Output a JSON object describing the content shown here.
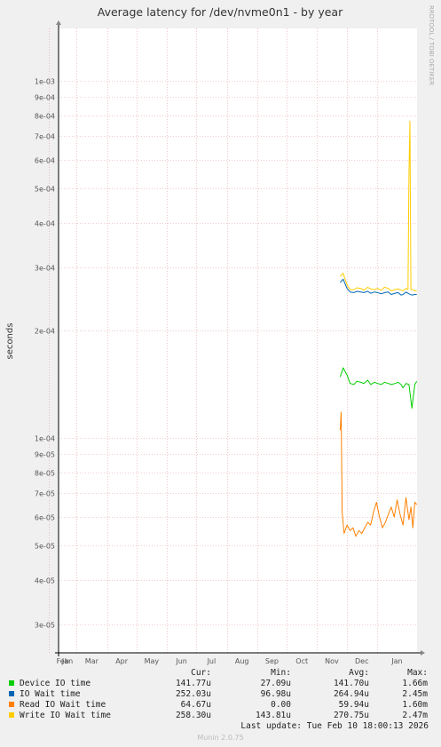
{
  "chart_data": {
    "type": "line",
    "title": "Average latency for /dev/nvme0n1 - by year",
    "ylabel": "seconds",
    "y_scale": "log",
    "ylim": [
      2.5e-05,
      0.0014
    ],
    "side_label": "RRDTOOL / TOBI OETIKER",
    "grid": true,
    "x_ticks": [
      "Jan",
      "Feb",
      "Mar",
      "Apr",
      "May",
      "Jun",
      "Jul",
      "Aug",
      "Sep",
      "Oct",
      "Nov",
      "Dec",
      "Jan"
    ],
    "y_ticks": [
      "1e-03",
      "9e-04",
      "8e-04",
      "7e-04",
      "6e-04",
      "5e-04",
      "4e-04",
      "3e-04",
      "2e-04",
      "1e-04",
      "9e-05",
      "8e-05",
      "7e-05",
      "6e-05",
      "5e-05",
      "4e-05",
      "3e-05"
    ],
    "y_tick_values": [
      0.001,
      0.0009,
      0.0008,
      0.0007,
      0.0006,
      0.0005,
      0.0004,
      0.0003,
      0.0002,
      0.0001,
      9e-05,
      8e-05,
      7e-05,
      6e-05,
      5e-05,
      4e-05,
      3e-05
    ],
    "series": [
      {
        "name": "Device IO time",
        "color": "#00cc00",
        "x": [
          "2025-11-24",
          "2025-11-27",
          "2025-12-01",
          "2025-12-04",
          "2025-12-08",
          "2025-12-11",
          "2025-12-15",
          "2025-12-18",
          "2025-12-22",
          "2025-12-25",
          "2025-12-29",
          "2026-01-01",
          "2026-01-05",
          "2026-01-08",
          "2026-01-12",
          "2026-01-15",
          "2026-01-19",
          "2026-01-22",
          "2026-01-25",
          "2026-01-27",
          "2026-01-30",
          "2026-02-02",
          "2026-02-05",
          "2026-02-08",
          "2026-02-10"
        ],
        "values": [
          0.000148,
          0.000157,
          0.00015,
          0.000142,
          0.000141,
          0.000144,
          0.000143,
          0.000142,
          0.000145,
          0.000141,
          0.000143,
          0.000142,
          0.000141,
          0.000143,
          0.000142,
          0.000141,
          0.000142,
          0.000143,
          0.000141,
          0.000138,
          0.000142,
          0.000141,
          0.000121,
          0.000141,
          0.000144
        ]
      },
      {
        "name": "IO Wait time",
        "color": "#0066b3",
        "x": [
          "2025-11-24",
          "2025-11-27",
          "2025-12-01",
          "2025-12-04",
          "2025-12-08",
          "2025-12-11",
          "2025-12-15",
          "2025-12-18",
          "2025-12-22",
          "2025-12-25",
          "2025-12-29",
          "2026-01-01",
          "2026-01-05",
          "2026-01-08",
          "2026-01-12",
          "2026-01-15",
          "2026-01-19",
          "2026-01-22",
          "2026-01-25",
          "2026-01-27",
          "2026-01-30",
          "2026-02-02",
          "2026-02-05",
          "2026-02-08",
          "2026-02-10"
        ],
        "values": [
          0.000272,
          0.000278,
          0.000262,
          0.000256,
          0.000255,
          0.000257,
          0.000256,
          0.000255,
          0.000257,
          0.000254,
          0.000256,
          0.000255,
          0.000253,
          0.000255,
          0.000256,
          0.000252,
          0.000254,
          0.000255,
          0.000251,
          0.000252,
          0.000256,
          0.000253,
          0.000251,
          0.000252,
          0.000252
        ]
      },
      {
        "name": "Read IO Wait time",
        "color": "#ff8000",
        "x": [
          "2025-11-24",
          "2025-11-25",
          "2025-11-26",
          "2025-11-28",
          "2025-12-01",
          "2025-12-04",
          "2025-12-07",
          "2025-12-10",
          "2025-12-13",
          "2025-12-16",
          "2025-12-19",
          "2025-12-22",
          "2025-12-25",
          "2025-12-28",
          "2025-12-31",
          "2026-01-03",
          "2026-01-06",
          "2026-01-09",
          "2026-01-12",
          "2026-01-15",
          "2026-01-18",
          "2026-01-21",
          "2026-01-24",
          "2026-01-27",
          "2026-01-30",
          "2026-02-02",
          "2026-02-04",
          "2026-02-06",
          "2026-02-08",
          "2026-02-10"
        ],
        "values": [
          0.000105,
          0.000118,
          6.2e-05,
          5.4e-05,
          5.7e-05,
          5.5e-05,
          5.6e-05,
          5.3e-05,
          5.5e-05,
          5.4e-05,
          5.6e-05,
          5.8e-05,
          5.7e-05,
          6.2e-05,
          6.6e-05,
          6e-05,
          5.6e-05,
          5.8e-05,
          6.1e-05,
          6.4e-05,
          6e-05,
          6.7e-05,
          6.1e-05,
          5.7e-05,
          6.8e-05,
          5.9e-05,
          6.4e-05,
          5.6e-05,
          6.6e-05,
          6.5e-05
        ]
      },
      {
        "name": "Write IO Wait time",
        "color": "#ffcc00",
        "x": [
          "2025-11-24",
          "2025-11-27",
          "2025-12-01",
          "2025-12-04",
          "2025-12-08",
          "2025-12-11",
          "2025-12-15",
          "2025-12-18",
          "2025-12-22",
          "2025-12-25",
          "2025-12-29",
          "2026-01-01",
          "2026-01-05",
          "2026-01-08",
          "2026-01-12",
          "2026-01-15",
          "2026-01-19",
          "2026-01-22",
          "2026-01-25",
          "2026-01-27",
          "2026-01-30",
          "2026-02-01",
          "2026-02-02",
          "2026-02-03",
          "2026-02-04",
          "2026-02-06",
          "2026-02-08",
          "2026-02-10"
        ],
        "values": [
          0.000283,
          0.000289,
          0.000268,
          0.00026,
          0.00026,
          0.000263,
          0.000262,
          0.000259,
          0.000264,
          0.000261,
          0.00026,
          0.000262,
          0.000259,
          0.000264,
          0.000262,
          0.000258,
          0.00026,
          0.000261,
          0.000259,
          0.000258,
          0.000262,
          0.00026,
          0.00055,
          0.00077,
          0.00026,
          0.00026,
          0.000258,
          0.000258
        ]
      }
    ]
  },
  "legend": {
    "headers": {
      "cur": "Cur:",
      "min": "Min:",
      "avg": "Avg:",
      "max": "Max:"
    },
    "rows": [
      {
        "name": "Device IO time",
        "color": "#00cc00",
        "cur": "141.77u",
        "min": "27.09u",
        "avg": "141.70u",
        "max": "1.66m"
      },
      {
        "name": "IO Wait time",
        "color": "#0066b3",
        "cur": "252.03u",
        "min": "96.98u",
        "avg": "264.94u",
        "max": "2.45m"
      },
      {
        "name": "Read IO Wait time",
        "color": "#ff8000",
        "cur": "64.67u",
        "min": "0.00",
        "avg": "59.94u",
        "max": "1.60m"
      },
      {
        "name": "Write IO Wait time",
        "color": "#ffcc00",
        "cur": "258.30u",
        "min": "143.81u",
        "avg": "270.75u",
        "max": "2.47m"
      }
    ]
  },
  "last_update": "Last update: Tue Feb 10 18:00:13 2026",
  "munin_version": "Munin 2.0.75"
}
